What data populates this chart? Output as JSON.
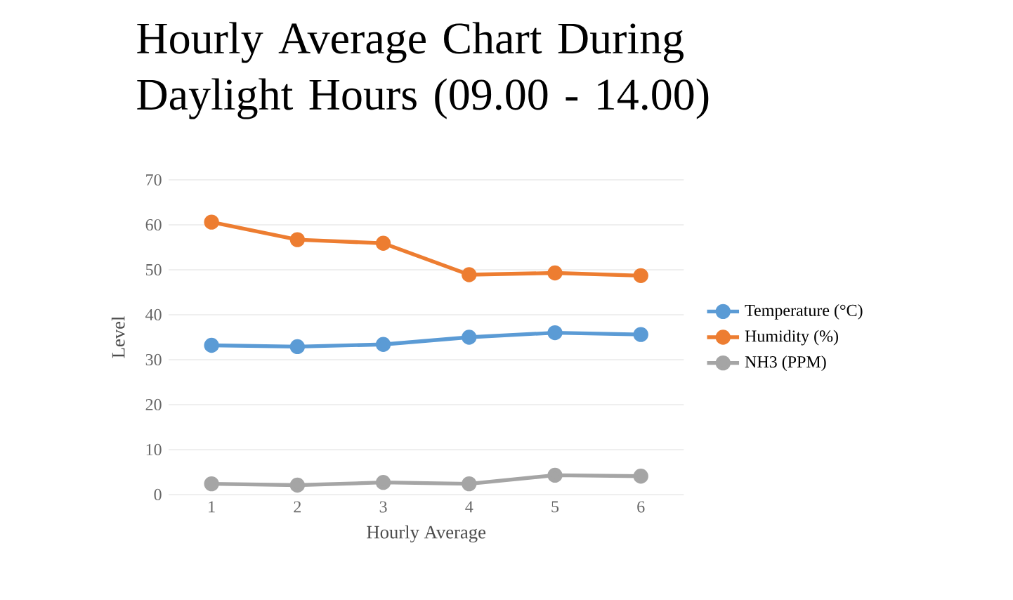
{
  "chart_data": {
    "type": "line",
    "title": "Hourly Average Chart During Daylight Hours (09.00 - 14.00)",
    "xlabel": "Hourly Average",
    "ylabel": "Level",
    "categories": [
      "1",
      "2",
      "3",
      "4",
      "5",
      "6"
    ],
    "series": [
      {
        "name": "Temperature (°C)",
        "color": "#5b9bd5",
        "values": [
          33.2,
          32.9,
          33.4,
          35.0,
          36.0,
          35.6
        ]
      },
      {
        "name": "Humidity (%)",
        "color": "#ed7d31",
        "values": [
          60.6,
          56.7,
          55.9,
          48.9,
          49.3,
          48.7
        ]
      },
      {
        "name": "NH3 (PPM)",
        "color": "#a5a5a5",
        "values": [
          2.4,
          2.1,
          2.7,
          2.4,
          4.3,
          4.1
        ]
      }
    ],
    "ylim": [
      0,
      70
    ],
    "yticks": [
      0,
      10,
      20,
      30,
      40,
      50,
      60,
      70
    ],
    "grid": "y",
    "legend": "right",
    "marker": "circle",
    "line_style": "solid"
  }
}
